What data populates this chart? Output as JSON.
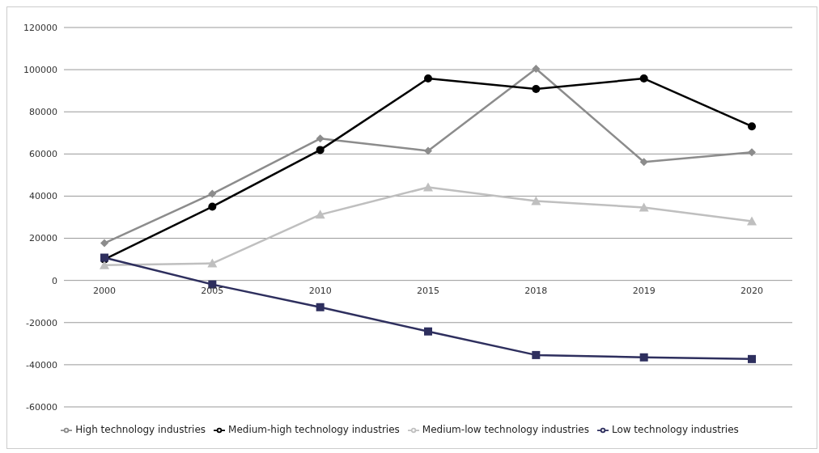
{
  "chart_data": {
    "type": "line",
    "categories": [
      "2000",
      "2005",
      "2010",
      "2015",
      "2018",
      "2019",
      "2020"
    ],
    "series": [
      {
        "name": "High technology industries",
        "color": "#8c8c8c",
        "marker": "diamond",
        "values": [
          17700,
          41100,
          67300,
          61500,
          100400,
          56200,
          60800
        ]
      },
      {
        "name": "Medium-high technology industries",
        "color": "#000000",
        "marker": "circle",
        "values": [
          10000,
          35000,
          61900,
          95800,
          90800,
          95800,
          73100
        ]
      },
      {
        "name": "Medium-low technology industries",
        "color": "#bfbfbf",
        "marker": "triangle",
        "values": [
          7300,
          8100,
          31200,
          44200,
          37700,
          34600,
          28100
        ]
      },
      {
        "name": "Low technology industries",
        "color": "#2e2f5e",
        "marker": "square",
        "values": [
          10800,
          -1900,
          -12700,
          -24200,
          -35400,
          -36500,
          -37300
        ]
      }
    ],
    "ylim": [
      -60000,
      120000
    ],
    "yticks": [
      -60000,
      -40000,
      -20000,
      0,
      20000,
      40000,
      60000,
      80000,
      100000,
      120000
    ],
    "grid": "y",
    "legend": "bottom",
    "line_style": "solid"
  }
}
